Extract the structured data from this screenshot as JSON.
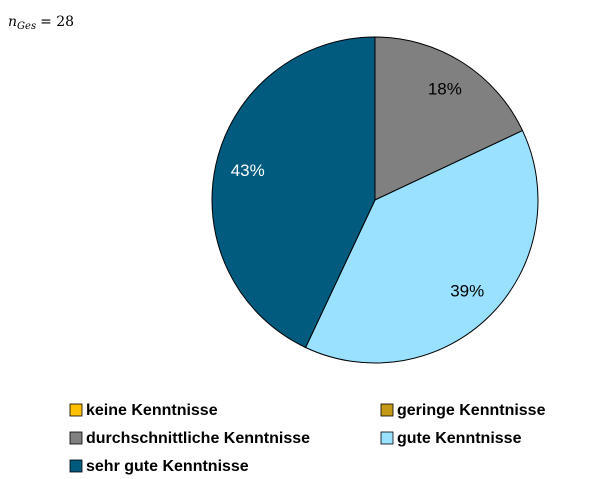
{
  "chart_data": {
    "type": "pie",
    "annotation": {
      "symbol": "n",
      "subscript": "Ges",
      "text": "= 28"
    },
    "categories": [
      "keine Kenntnisse",
      "geringe Kenntnisse",
      "durchschnittliche Kenntnisse",
      "gute Kenntnisse",
      "sehr gute Kenntnisse"
    ],
    "values": [
      0,
      0,
      18,
      39,
      43
    ],
    "value_labels": [
      null,
      null,
      "18%",
      "39%",
      "43%"
    ],
    "colors": [
      "#ffc000",
      "#c49a16",
      "#808080",
      "#99e1ff",
      "#005b7f"
    ],
    "legend": "bottom"
  }
}
